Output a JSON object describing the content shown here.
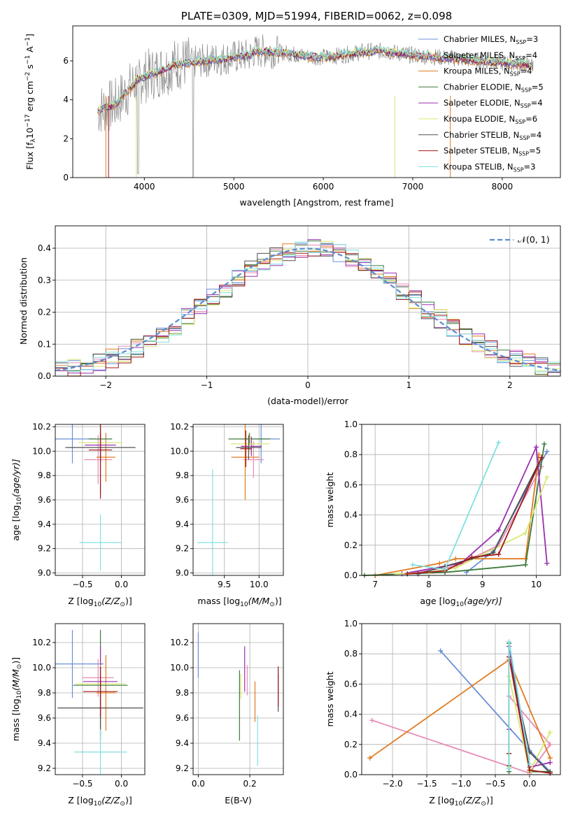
{
  "colors": {
    "c0": "#6a8fd8",
    "c1": "#e88cb8",
    "c2": "#e07b20",
    "c3": "#3d7a3d",
    "c4": "#9a30b0",
    "c5": "#d8e870",
    "c6": "#505050",
    "c7": "#a01818",
    "c8": "#80e0e0"
  },
  "chart_data": [
    {
      "id": "spectrum",
      "type": "line",
      "title": "PLATE=0309, MJD=51994, FIBERID=0062, z=0.098",
      "xlabel": "wavelength [Angstrom, rest frame]",
      "ylabel_main": "Flux [f",
      "ylabel_sub": "λ",
      "ylabel_rest": "10",
      "ylabel_exp1": "−17",
      "ylabel_mid": " erg cm",
      "ylabel_exp2": "−2",
      "ylabel_s": " s",
      "ylabel_exp3": "−1",
      "ylabel_end": " A",
      "ylabel_exp4": "−1",
      "ylabel_close": "]",
      "xlim": [
        3200,
        8650
      ],
      "ylim": [
        0,
        7.8
      ],
      "xticks": [
        4000,
        5000,
        6000,
        7000,
        8000
      ],
      "yticks": [
        0,
        2,
        4,
        6
      ],
      "legend_position": "right",
      "legend": [
        {
          "name": "Chabrier MILES, N",
          "sub": "SSP",
          "val": "=3",
          "color": "c0"
        },
        {
          "name": "Salpeter MILES, N",
          "sub": "SSP",
          "val": "=4",
          "color": "c1"
        },
        {
          "name": "Kroupa MILES, N",
          "sub": "SSP",
          "val": "=4",
          "color": "c2"
        },
        {
          "name": "Chabrier ELODIE, N",
          "sub": "SSP",
          "val": "=5",
          "color": "c3"
        },
        {
          "name": "Salpeter ELODIE, N",
          "sub": "SSP",
          "val": "=4",
          "color": "c4"
        },
        {
          "name": "Kroupa ELODIE, N",
          "sub": "SSP",
          "val": "=6",
          "color": "c5"
        },
        {
          "name": "Chabrier STELIB, N",
          "sub": "SSP",
          "val": "=4",
          "color": "c6"
        },
        {
          "name": "Salpeter STELIB, N",
          "sub": "SSP",
          "val": "=5",
          "color": "c7"
        },
        {
          "name": "Kroupa STELIB, N",
          "sub": "SSP",
          "val": "=3",
          "color": "c8"
        }
      ]
    },
    {
      "id": "residuals",
      "type": "line",
      "xlabel": "(data-model)/error",
      "ylabel": "Normed distribution",
      "xlim": [
        -2.5,
        2.5
      ],
      "ylim": [
        0,
        0.47
      ],
      "xticks": [
        -2,
        -1,
        0,
        1,
        2
      ],
      "yticks": [
        0.0,
        0.1,
        0.2,
        0.3,
        0.4
      ],
      "legend_position": "top-right",
      "legend_label": "𝒩(0, 1)",
      "grid": true
    },
    {
      "id": "age-vs-Z",
      "type": "scatter",
      "xlabel_main": "Z [log",
      "xlabel_sub": "10",
      "xlabel_end": "(Z/Z",
      "xlabel_sun": "⊙",
      "xlabel_close": ")]",
      "ylabel_main": "age  [log",
      "ylabel_sub": "10",
      "ylabel_end": "(age/yr)]",
      "xlim": [
        -0.85,
        0.3
      ],
      "ylim": [
        8.98,
        10.22
      ],
      "xticks": [
        -0.5,
        0.0
      ],
      "yticks": [
        9.0,
        9.2,
        9.4,
        9.6,
        9.8,
        10.0,
        10.2
      ],
      "grid": true,
      "points": [
        {
          "color": "c0",
          "x": -0.63,
          "y": 10.1,
          "xerr": 0.3,
          "yerr": 0.2
        },
        {
          "color": "c1",
          "x": -0.3,
          "y": 9.93,
          "xerr": 0.18,
          "yerr": 0.2
        },
        {
          "color": "c2",
          "x": -0.2,
          "y": 9.95,
          "xerr": 0.12,
          "yerr": 0.2
        },
        {
          "color": "c3",
          "x": -0.27,
          "y": 10.1,
          "xerr": 0.15,
          "yerr": 0.45
        },
        {
          "color": "c4",
          "x": -0.27,
          "y": 10.05,
          "xerr": 0.2,
          "yerr": 0.1
        },
        {
          "color": "c5",
          "x": -0.27,
          "y": 10.07,
          "xerr": 0.28,
          "yerr": 0.1
        },
        {
          "color": "c6",
          "x": -0.27,
          "y": 10.03,
          "xerr": 0.45,
          "yerr": 0.12
        },
        {
          "color": "c7",
          "x": -0.27,
          "y": 10.01,
          "xerr": 0.15,
          "yerr": 0.4
        },
        {
          "color": "c8",
          "x": -0.27,
          "y": 9.25,
          "xerr": 0.27,
          "yerr": 0.23
        }
      ]
    },
    {
      "id": "age-vs-mass",
      "type": "scatter",
      "xlabel_main": "mass [log",
      "xlabel_sub": "10",
      "xlabel_end": "(M/M",
      "xlabel_sun": "⊙",
      "xlabel_close": ")]",
      "xlim": [
        9.05,
        10.35
      ],
      "ylim": [
        8.98,
        10.22
      ],
      "xticks": [
        9.5,
        10.0
      ],
      "yticks": [
        9.0,
        9.2,
        9.4,
        9.6,
        9.8,
        10.0,
        10.2
      ],
      "grid": true,
      "points": [
        {
          "color": "c0",
          "x": 10.03,
          "y": 10.1,
          "xerr": 0.27,
          "yerr": 0.2
        },
        {
          "color": "c1",
          "x": 9.92,
          "y": 9.93,
          "xerr": 0.15,
          "yerr": 0.15
        },
        {
          "color": "c2",
          "x": 9.8,
          "y": 9.95,
          "xerr": 0.2,
          "yerr": 0.35
        },
        {
          "color": "c3",
          "x": 9.86,
          "y": 10.1,
          "xerr": 0.3,
          "yerr": 0.05
        },
        {
          "color": "c4",
          "x": 9.89,
          "y": 10.04,
          "xerr": 0.15,
          "yerr": 0.08
        },
        {
          "color": "c5",
          "x": 9.87,
          "y": 10.06,
          "xerr": 0.28,
          "yerr": 0.08
        },
        {
          "color": "c6",
          "x": 9.85,
          "y": 10.03,
          "xerr": 0.18,
          "yerr": 0.1
        },
        {
          "color": "c7",
          "x": 9.81,
          "y": 10.02,
          "xerr": 0.08,
          "yerr": 0.15
        },
        {
          "color": "c8",
          "x": 9.33,
          "y": 9.25,
          "xerr": 0.22,
          "yerr": 0.6
        }
      ]
    },
    {
      "id": "weight-vs-age",
      "type": "line",
      "xlabel_main": "age  [log",
      "xlabel_sub": "10",
      "xlabel_end": "(age/yr)]",
      "ylabel": "mass weight",
      "xlim": [
        6.75,
        10.45
      ],
      "ylim": [
        0,
        1.0
      ],
      "xticks": [
        7,
        8,
        9,
        10
      ],
      "yticks": [
        0.0,
        0.2,
        0.4,
        0.6,
        0.8,
        1.0
      ],
      "grid": true,
      "series": [
        {
          "color": "c0",
          "x": [
            8.7,
            9.2,
            10.2
          ],
          "y": [
            0.02,
            0.16,
            0.82
          ]
        },
        {
          "color": "c1",
          "x": [
            7.6,
            8.5,
            9.3,
            10.1
          ],
          "y": [
            0.01,
            0.06,
            0.2,
            0.72
          ]
        },
        {
          "color": "c2",
          "x": [
            7.0,
            8.2,
            8.5,
            9.8,
            10.05
          ],
          "y": [
            0.0,
            0.08,
            0.11,
            0.11,
            0.8
          ]
        },
        {
          "color": "c3",
          "x": [
            6.8,
            8.3,
            9.8,
            10.15
          ],
          "y": [
            0.0,
            0.02,
            0.07,
            0.87
          ]
        },
        {
          "color": "c4",
          "x": [
            7.5,
            8.6,
            9.3,
            10.0,
            10.2
          ],
          "y": [
            0.01,
            0.08,
            0.3,
            0.85,
            0.08
          ]
        },
        {
          "color": "c5",
          "x": [
            7.4,
            8.0,
            8.5,
            9.8,
            10.2
          ],
          "y": [
            0.01,
            0.02,
            0.05,
            0.28,
            0.65
          ]
        },
        {
          "color": "c6",
          "x": [
            7.8,
            8.3,
            9.2,
            10.1
          ],
          "y": [
            0.01,
            0.06,
            0.15,
            0.78
          ]
        },
        {
          "color": "c7",
          "x": [
            7.6,
            8.3,
            8.8,
            9.3,
            10.1
          ],
          "y": [
            0.01,
            0.03,
            0.12,
            0.14,
            0.78
          ]
        },
        {
          "color": "c8",
          "x": [
            7.7,
            8.3,
            9.3
          ],
          "y": [
            0.07,
            0.04,
            0.88
          ]
        }
      ]
    },
    {
      "id": "mass-vs-Z",
      "type": "scatter",
      "xlabel_main": "Z [log",
      "xlabel_sub": "10",
      "xlabel_end": "(Z/Z",
      "xlabel_sun": "⊙",
      "xlabel_close": ")]",
      "ylabel_main": "mass [log",
      "ylabel_sub": "10",
      "ylabel_end": "(M/M",
      "ylabel_sun": "⊙",
      "ylabel_close": ")]",
      "xlim": [
        -0.85,
        0.3
      ],
      "ylim": [
        9.15,
        10.35
      ],
      "xticks": [
        -0.5,
        0.0
      ],
      "yticks": [
        9.2,
        9.4,
        9.6,
        9.8,
        10.0,
        10.2
      ],
      "grid": true,
      "points": [
        {
          "color": "c0",
          "x": -0.63,
          "y": 10.03,
          "xerr": 0.4,
          "yerr": 0.27
        },
        {
          "color": "c1",
          "x": -0.3,
          "y": 9.92,
          "xerr": 0.2,
          "yerr": 0.15
        },
        {
          "color": "c2",
          "x": -0.2,
          "y": 9.8,
          "xerr": 0.12,
          "yerr": 0.3
        },
        {
          "color": "c3",
          "x": -0.27,
          "y": 9.86,
          "xerr": 0.35,
          "yerr": 0.44
        },
        {
          "color": "c4",
          "x": -0.27,
          "y": 9.89,
          "xerr": 0.22,
          "yerr": 0.28
        },
        {
          "color": "c5",
          "x": -0.27,
          "y": 9.87,
          "xerr": 0.32,
          "yerr": 0.15
        },
        {
          "color": "c6",
          "x": -0.27,
          "y": 9.68,
          "xerr": 0.55,
          "yerr": 0.22
        },
        {
          "color": "c7",
          "x": -0.27,
          "y": 9.81,
          "xerr": 0.22,
          "yerr": 0.2
        },
        {
          "color": "c8",
          "x": -0.27,
          "y": 9.33,
          "xerr": 0.34,
          "yerr": 0.18
        }
      ]
    },
    {
      "id": "mass-vs-ebv",
      "type": "scatter",
      "xlabel": "E(B-V)",
      "xlim": [
        -0.02,
        0.33
      ],
      "ylim": [
        9.15,
        10.35
      ],
      "xticks": [
        0.0,
        0.2
      ],
      "yticks": [
        9.2,
        9.4,
        9.6,
        9.8,
        10.0,
        10.2
      ],
      "grid": true,
      "points": [
        {
          "color": "c0",
          "x": 0.0,
          "y": 10.1,
          "xerr": 0,
          "yerr": 0.18
        },
        {
          "color": "c1",
          "x": 0.19,
          "y": 9.9,
          "xerr": 0,
          "yerr": 0.12
        },
        {
          "color": "c2",
          "x": 0.22,
          "y": 9.73,
          "xerr": 0,
          "yerr": 0.16
        },
        {
          "color": "c3",
          "x": 0.16,
          "y": 9.7,
          "xerr": 0,
          "yerr": 0.28
        },
        {
          "color": "c4",
          "x": 0.18,
          "y": 9.99,
          "xerr": 0,
          "yerr": 0.18
        },
        {
          "color": "c5",
          "x": 0.165,
          "y": 9.85,
          "xerr": 0,
          "yerr": 0.1
        },
        {
          "color": "c6",
          "x": 0.31,
          "y": 9.8,
          "xerr": 0,
          "yerr": 0.15
        },
        {
          "color": "c7",
          "x": 0.31,
          "y": 9.85,
          "xerr": 0,
          "yerr": 0.16
        },
        {
          "color": "c8",
          "x": 0.23,
          "y": 9.42,
          "xerr": 0,
          "yerr": 0.2
        }
      ]
    },
    {
      "id": "weight-vs-Z",
      "type": "line",
      "xlabel_main": "Z [log",
      "xlabel_sub": "10",
      "xlabel_end": "(Z/Z",
      "xlabel_sun": "⊙",
      "xlabel_close": ")]",
      "ylabel": "mass weight",
      "xlim": [
        -2.45,
        0.45
      ],
      "ylim": [
        0,
        1.0
      ],
      "xticks": [
        -2.0,
        -1.5,
        -1.0,
        -0.5,
        0.0
      ],
      "yticks": [
        0.0,
        0.2,
        0.4,
        0.6,
        0.8,
        1.0
      ],
      "grid": true,
      "series": [
        {
          "color": "c0",
          "x": [
            -1.3,
            0.0,
            0.3
          ],
          "y": [
            0.82,
            0.16,
            0.02
          ]
        },
        {
          "color": "c1",
          "x": [
            -2.3,
            0.0,
            0.3,
            -0.3
          ],
          "y": [
            0.36,
            0.01,
            0.2,
            0.52
          ]
        },
        {
          "color": "c2",
          "x": [
            -2.33,
            -0.3,
            0.3
          ],
          "y": [
            0.11,
            0.76,
            0.11
          ]
        },
        {
          "color": "c3",
          "x": [
            -0.3,
            -0.3,
            0.0,
            0.3
          ],
          "y": [
            0.02,
            0.87,
            0.02,
            0.02
          ]
        },
        {
          "color": "c4",
          "x": [
            -0.3,
            -0.3,
            0.0,
            0.3
          ],
          "y": [
            0.3,
            0.85,
            0.05,
            0.08
          ]
        },
        {
          "color": "c5",
          "x": [
            -0.3,
            -0.3,
            0.0,
            0.3
          ],
          "y": [
            0.05,
            0.65,
            0.02,
            0.28
          ]
        },
        {
          "color": "c6",
          "x": [
            -0.3,
            -0.3,
            0.0,
            0.3
          ],
          "y": [
            0.06,
            0.78,
            0.15,
            0.01
          ]
        },
        {
          "color": "c7",
          "x": [
            -0.3,
            -0.3,
            0.0,
            0.3
          ],
          "y": [
            0.14,
            0.78,
            0.03,
            0.01
          ]
        },
        {
          "color": "c8",
          "x": [
            -0.3,
            -0.3,
            0.0
          ],
          "y": [
            0.04,
            0.88,
            0.07
          ]
        }
      ]
    }
  ]
}
